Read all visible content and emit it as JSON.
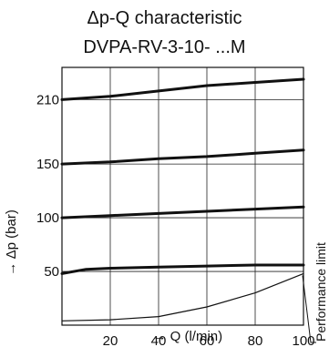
{
  "title": [
    "Δp-Q characteristic",
    "DVPA-RV-3-10- ...M"
  ],
  "chart_data": {
    "type": "line",
    "xlabel": "→ Q (l/min)",
    "ylabel": "→ Δp (bar)",
    "xlim": [
      0,
      100
    ],
    "ylim": [
      0,
      240
    ],
    "xticks": [
      20,
      40,
      60,
      80,
      100
    ],
    "yticks": [
      50,
      100,
      150,
      210
    ],
    "grid": true,
    "series": [
      {
        "x": [
          0,
          20,
          40,
          60,
          80,
          100
        ],
        "y": [
          210,
          213,
          218,
          223,
          226,
          229
        ]
      },
      {
        "x": [
          0,
          20,
          40,
          60,
          80,
          100
        ],
        "y": [
          150,
          152,
          155,
          157,
          160,
          163
        ]
      },
      {
        "x": [
          0,
          20,
          40,
          60,
          80,
          100
        ],
        "y": [
          100,
          102,
          104,
          106,
          108,
          110
        ]
      },
      {
        "x": [
          0,
          10,
          20,
          40,
          60,
          80,
          100
        ],
        "y": [
          48,
          52,
          53,
          54,
          55,
          56,
          56
        ]
      },
      {
        "x": [
          0,
          20,
          40,
          60,
          80,
          100
        ],
        "y": [
          4,
          5,
          8,
          17,
          30,
          48
        ]
      }
    ],
    "annotations": [
      {
        "text": "Performance limit",
        "target_series": 4
      }
    ]
  }
}
